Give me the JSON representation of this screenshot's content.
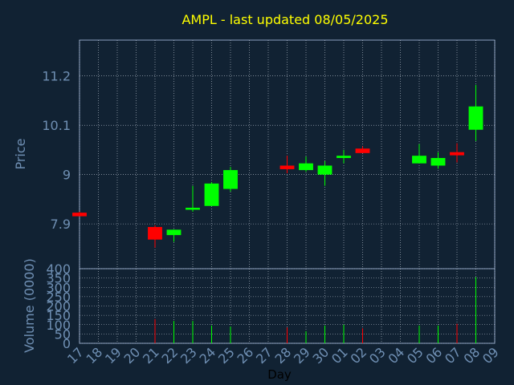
{
  "chart_data": {
    "type": "candlestick",
    "title": "AMPL - last updated 08/05/2025",
    "xlabel": "Day",
    "price_panel": {
      "ylabel": "Price",
      "yticks": [
        "7.9",
        "9",
        "10.1",
        "11.2"
      ],
      "ylim": [
        6.9,
        12.0
      ]
    },
    "volume_panel": {
      "ylabel": "Volume (0000)",
      "yticks": [
        "0",
        "50",
        "100",
        "150",
        "200",
        "250",
        "300",
        "350",
        "400"
      ],
      "ylim": [
        0,
        400
      ]
    },
    "x_tick_labels": [
      "17",
      "18",
      "19",
      "20",
      "21",
      "22",
      "23",
      "24",
      "25",
      "26",
      "27",
      "28",
      "29",
      "30",
      "01",
      "02",
      "03",
      "04",
      "05",
      "06",
      "07",
      "08",
      "09"
    ],
    "candles": [
      {
        "day": "17",
        "open": 8.15,
        "high": 8.17,
        "low": 8.07,
        "close": 8.07,
        "volume": 0
      },
      {
        "day": "21",
        "open": 7.83,
        "high": 7.87,
        "low": 7.37,
        "close": 7.55,
        "volume": 130
      },
      {
        "day": "22",
        "open": 7.65,
        "high": 7.78,
        "low": 7.5,
        "close": 7.77,
        "volume": 120
      },
      {
        "day": "23",
        "open": 8.22,
        "high": 8.75,
        "low": 8.17,
        "close": 8.26,
        "volume": 120
      },
      {
        "day": "24",
        "open": 8.3,
        "high": 8.83,
        "low": 8.3,
        "close": 8.8,
        "volume": 95
      },
      {
        "day": "25",
        "open": 8.68,
        "high": 9.17,
        "low": 8.62,
        "close": 9.1,
        "volume": 90
      },
      {
        "day": "28",
        "open": 9.2,
        "high": 9.42,
        "low": 9.03,
        "close": 9.12,
        "volume": 85
      },
      {
        "day": "29",
        "open": 9.1,
        "high": 9.4,
        "low": 9.06,
        "close": 9.25,
        "volume": 65
      },
      {
        "day": "30",
        "open": 9.0,
        "high": 9.3,
        "low": 8.75,
        "close": 9.2,
        "volume": 95
      },
      {
        "day": "01",
        "open": 9.37,
        "high": 9.55,
        "low": 9.25,
        "close": 9.42,
        "volume": 100
      },
      {
        "day": "02",
        "open": 9.58,
        "high": 9.63,
        "low": 9.48,
        "close": 9.48,
        "volume": 80
      },
      {
        "day": "05",
        "open": 9.25,
        "high": 9.68,
        "low": 9.25,
        "close": 9.42,
        "volume": 95
      },
      {
        "day": "06",
        "open": 9.2,
        "high": 9.5,
        "low": 9.13,
        "close": 9.37,
        "volume": 95
      },
      {
        "day": "07",
        "open": 9.5,
        "high": 9.7,
        "low": 9.27,
        "close": 9.43,
        "volume": 105
      },
      {
        "day": "08",
        "open": 10.0,
        "high": 11.0,
        "low": 9.75,
        "close": 10.52,
        "volume": 355
      }
    ]
  },
  "colors": {
    "background": "#112233",
    "plot_border": "#8aa0c0",
    "grid": "#c0c8d4",
    "up": "#00ff00",
    "down": "#ff0000",
    "title": "#ffff00",
    "tick_text": "#6f8fb3",
    "axis_title": "#000000"
  }
}
